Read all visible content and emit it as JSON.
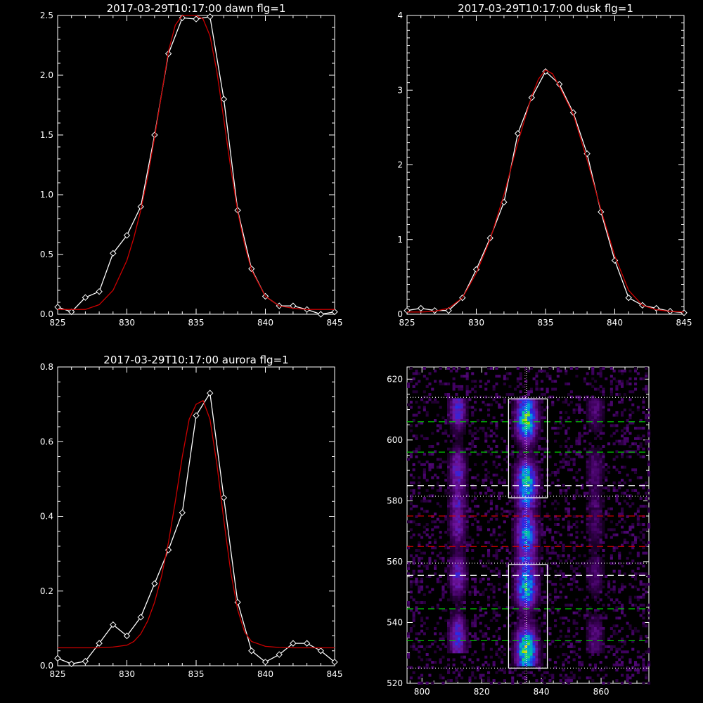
{
  "chart_data": [
    {
      "type": "line",
      "title": "2017-03-29T10:17:00 dawn flg=1",
      "xlim": [
        825,
        845
      ],
      "ylim": [
        0,
        2.5
      ],
      "xticks": [
        "825",
        "830",
        "835",
        "840",
        "845"
      ],
      "yticks": [
        "0.0",
        "0.5",
        "1.0",
        "1.5",
        "2.0",
        "2.5"
      ],
      "series": [
        {
          "color": "#ffffff",
          "marker": "diamond",
          "x": [
            825,
            826,
            827,
            828,
            829,
            830,
            831,
            832,
            833,
            834,
            835,
            836,
            837,
            838,
            839,
            840,
            841,
            842,
            843,
            844,
            845
          ],
          "y": [
            0.06,
            0.02,
            0.14,
            0.19,
            0.51,
            0.66,
            0.9,
            1.5,
            2.18,
            2.48,
            2.47,
            2.49,
            1.8,
            0.87,
            0.38,
            0.15,
            0.07,
            0.07,
            0.04,
            0.0,
            0.02
          ]
        },
        {
          "color": "#cc0000",
          "marker": "none",
          "x": [
            825,
            826,
            827,
            828,
            829,
            830,
            830.5,
            831,
            831.5,
            832,
            832.5,
            833,
            833.5,
            834,
            834.5,
            835,
            835.5,
            836,
            836.5,
            837,
            837.5,
            838,
            838.5,
            839,
            840,
            841,
            842,
            843,
            844,
            845
          ],
          "y": [
            0.04,
            0.04,
            0.04,
            0.08,
            0.2,
            0.45,
            0.64,
            0.87,
            1.15,
            1.48,
            1.84,
            2.2,
            2.42,
            2.5,
            2.5,
            2.5,
            2.47,
            2.33,
            2.03,
            1.63,
            1.22,
            0.86,
            0.58,
            0.37,
            0.15,
            0.07,
            0.05,
            0.04,
            0.04,
            0.04
          ]
        }
      ]
    },
    {
      "type": "line",
      "title": "2017-03-29T10:17:00 dusk flg=1",
      "xlim": [
        825,
        845
      ],
      "ylim": [
        0,
        4
      ],
      "xticks": [
        "825",
        "830",
        "835",
        "840",
        "845"
      ],
      "yticks": [
        "0",
        "1",
        "2",
        "3",
        "4"
      ],
      "series": [
        {
          "color": "#ffffff",
          "marker": "diamond",
          "x": [
            825,
            826,
            827,
            828,
            829,
            830,
            831,
            832,
            833,
            834,
            835,
            836,
            837,
            838,
            839,
            840,
            841,
            842,
            843,
            844,
            845
          ],
          "y": [
            0.05,
            0.08,
            0.05,
            0.05,
            0.22,
            0.6,
            1.02,
            1.5,
            2.42,
            2.9,
            3.25,
            3.08,
            2.7,
            2.15,
            1.37,
            0.72,
            0.22,
            0.12,
            0.08,
            0.04,
            0.02
          ]
        },
        {
          "color": "#cc0000",
          "marker": "none",
          "x": [
            825,
            826,
            827,
            828,
            829,
            830,
            831,
            832,
            833,
            834,
            834.5,
            835,
            835.5,
            836,
            837,
            838,
            839,
            840,
            841,
            842,
            843,
            844,
            845
          ],
          "y": [
            0.03,
            0.03,
            0.04,
            0.08,
            0.22,
            0.55,
            1.0,
            1.6,
            2.3,
            2.92,
            3.15,
            3.27,
            3.22,
            3.05,
            2.68,
            2.07,
            1.4,
            0.78,
            0.32,
            0.12,
            0.06,
            0.04,
            0.03
          ]
        }
      ]
    },
    {
      "type": "line",
      "title": "2017-03-29T10:17:00 aurora flg=1",
      "xlim": [
        825,
        845
      ],
      "ylim": [
        0,
        0.8
      ],
      "xticks": [
        "825",
        "830",
        "835",
        "840",
        "845"
      ],
      "yticks": [
        "0.0",
        "0.2",
        "0.4",
        "0.6",
        "0.8"
      ],
      "series": [
        {
          "color": "#ffffff",
          "marker": "diamond",
          "x": [
            825,
            826,
            827,
            828,
            829,
            830,
            831,
            832,
            833,
            834,
            835,
            836,
            837,
            838,
            839,
            840,
            841,
            842,
            843,
            844,
            845
          ],
          "y": [
            0.02,
            0.005,
            0.012,
            0.06,
            0.11,
            0.08,
            0.13,
            0.22,
            0.31,
            0.41,
            0.67,
            0.73,
            0.45,
            0.17,
            0.04,
            0.01,
            0.03,
            0.06,
            0.06,
            0.04,
            0.01
          ]
        },
        {
          "color": "#cc0000",
          "marker": "none",
          "x": [
            825,
            826,
            827,
            828,
            829,
            830,
            830.5,
            831,
            831.5,
            832,
            832.5,
            833,
            833.5,
            834,
            834.5,
            835,
            835.5,
            836,
            836.5,
            837,
            837.5,
            838,
            838.5,
            839,
            840,
            841,
            842,
            843,
            844,
            845
          ],
          "y": [
            0.048,
            0.048,
            0.048,
            0.048,
            0.05,
            0.055,
            0.065,
            0.085,
            0.12,
            0.17,
            0.24,
            0.33,
            0.44,
            0.56,
            0.66,
            0.7,
            0.71,
            0.66,
            0.54,
            0.39,
            0.25,
            0.15,
            0.09,
            0.065,
            0.052,
            0.049,
            0.048,
            0.048,
            0.048,
            0.048
          ]
        }
      ]
    },
    {
      "type": "heatmap",
      "xlim": [
        795,
        876
      ],
      "ylim": [
        520,
        624
      ],
      "xticks": [
        "800",
        "820",
        "840",
        "860"
      ],
      "yticks": [
        "520",
        "540",
        "560",
        "580",
        "600",
        "620"
      ],
      "emission_bands": [
        {
          "x_center": 812,
          "y_from": 530,
          "y_to": 614,
          "intensity": 0.5
        },
        {
          "x_center": 835,
          "y_from": 526,
          "y_to": 614,
          "intensity": 1.0
        },
        {
          "x_center": 858,
          "y_from": 530,
          "y_to": 614,
          "intensity": 0.25
        }
      ],
      "boxes": [
        {
          "x_from": 829,
          "x_to": 842,
          "y_from": 581,
          "y_to": 613.5
        },
        {
          "x_from": 829,
          "x_to": 842,
          "y_from": 525,
          "y_to": 559
        }
      ],
      "vertical_line_x": 835,
      "dotted_white_y": [
        525,
        559.5,
        581.5,
        614
      ],
      "dashed_white_y": [
        555.5,
        585
      ],
      "dashed_green_y": [
        534,
        544.5,
        596,
        606
      ],
      "dashed_red_y": [
        565,
        575
      ],
      "colors": {
        "white": "#ffffff",
        "green": "#00cc00",
        "red": "#cc0000"
      }
    }
  ]
}
